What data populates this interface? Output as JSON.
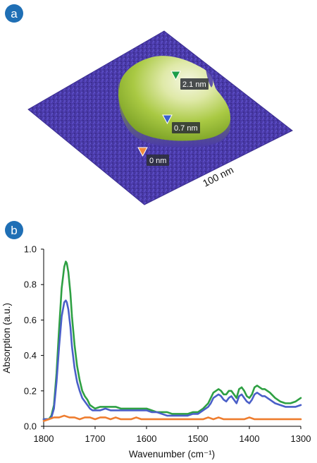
{
  "panels": [
    {
      "letter": "a"
    },
    {
      "letter": "b"
    }
  ],
  "afm_image": {
    "scale_bar_label": "100 nm",
    "colors": {
      "substrate": "#4a3aa8",
      "flake_low": "#8fb82a",
      "flake_high": "#eef2d2"
    },
    "markers": [
      {
        "label": "2.1 nm",
        "color": "#1e9e4a"
      },
      {
        "label": "0.7 nm",
        "color": "#3a5fcd"
      },
      {
        "label": "0 nm",
        "color": "#f08a3c"
      }
    ]
  },
  "chart_data": {
    "type": "line",
    "xlabel": "Wavenumber (cm⁻¹)",
    "ylabel": "Absorption (a.u.)",
    "xlim": [
      1800,
      1300
    ],
    "ylim": [
      0,
      1.0
    ],
    "x_reversed": true,
    "xticks": [
      1800,
      1700,
      1600,
      1500,
      1400,
      1300
    ],
    "yticks": [
      0.0,
      0.2,
      0.4,
      0.6,
      0.8,
      1.0
    ],
    "xtick_labels": [
      "1800",
      "1700",
      "1600",
      "1500",
      "1400",
      "1300"
    ],
    "ytick_labels": [
      "0.0",
      "0.2",
      "0.4",
      "0.6",
      "0.8",
      "1.0"
    ],
    "grid": false,
    "series": [
      {
        "color": "#2ea043",
        "x": [
          1800,
          1790,
          1785,
          1780,
          1775,
          1770,
          1765,
          1760,
          1757,
          1755,
          1752,
          1748,
          1745,
          1740,
          1735,
          1730,
          1725,
          1720,
          1715,
          1710,
          1705,
          1700,
          1690,
          1680,
          1670,
          1660,
          1650,
          1640,
          1630,
          1620,
          1610,
          1600,
          1590,
          1580,
          1570,
          1560,
          1550,
          1540,
          1530,
          1520,
          1510,
          1500,
          1495,
          1490,
          1480,
          1475,
          1470,
          1465,
          1460,
          1455,
          1450,
          1445,
          1440,
          1435,
          1430,
          1425,
          1420,
          1415,
          1410,
          1405,
          1400,
          1395,
          1390,
          1385,
          1380,
          1375,
          1370,
          1365,
          1360,
          1350,
          1340,
          1330,
          1320,
          1310,
          1300
        ],
        "y": [
          0.04,
          0.04,
          0.06,
          0.12,
          0.3,
          0.55,
          0.78,
          0.9,
          0.93,
          0.92,
          0.87,
          0.75,
          0.62,
          0.46,
          0.34,
          0.26,
          0.2,
          0.17,
          0.15,
          0.12,
          0.11,
          0.1,
          0.11,
          0.11,
          0.11,
          0.11,
          0.1,
          0.1,
          0.1,
          0.1,
          0.1,
          0.1,
          0.09,
          0.08,
          0.08,
          0.08,
          0.07,
          0.07,
          0.07,
          0.07,
          0.08,
          0.08,
          0.09,
          0.1,
          0.13,
          0.16,
          0.19,
          0.2,
          0.21,
          0.2,
          0.18,
          0.18,
          0.2,
          0.2,
          0.18,
          0.16,
          0.21,
          0.22,
          0.2,
          0.17,
          0.16,
          0.18,
          0.22,
          0.23,
          0.22,
          0.21,
          0.21,
          0.2,
          0.19,
          0.16,
          0.14,
          0.13,
          0.13,
          0.14,
          0.16
        ]
      },
      {
        "color": "#4a5fc8",
        "x": [
          1800,
          1790,
          1785,
          1780,
          1775,
          1770,
          1765,
          1760,
          1757,
          1755,
          1752,
          1748,
          1745,
          1740,
          1735,
          1730,
          1725,
          1720,
          1715,
          1710,
          1705,
          1700,
          1690,
          1680,
          1670,
          1660,
          1650,
          1640,
          1630,
          1620,
          1610,
          1600,
          1590,
          1580,
          1570,
          1560,
          1550,
          1540,
          1530,
          1520,
          1510,
          1500,
          1495,
          1490,
          1480,
          1475,
          1470,
          1465,
          1460,
          1455,
          1450,
          1445,
          1440,
          1435,
          1430,
          1425,
          1420,
          1415,
          1410,
          1405,
          1400,
          1395,
          1390,
          1385,
          1380,
          1375,
          1370,
          1365,
          1360,
          1350,
          1340,
          1330,
          1320,
          1310,
          1300
        ],
        "y": [
          0.04,
          0.04,
          0.05,
          0.1,
          0.25,
          0.45,
          0.62,
          0.7,
          0.71,
          0.7,
          0.66,
          0.56,
          0.45,
          0.33,
          0.25,
          0.2,
          0.16,
          0.14,
          0.12,
          0.1,
          0.09,
          0.09,
          0.09,
          0.1,
          0.09,
          0.09,
          0.09,
          0.09,
          0.09,
          0.09,
          0.09,
          0.09,
          0.08,
          0.08,
          0.07,
          0.06,
          0.06,
          0.06,
          0.06,
          0.06,
          0.07,
          0.07,
          0.08,
          0.09,
          0.11,
          0.13,
          0.16,
          0.17,
          0.18,
          0.17,
          0.15,
          0.14,
          0.16,
          0.17,
          0.15,
          0.13,
          0.17,
          0.18,
          0.16,
          0.14,
          0.13,
          0.15,
          0.18,
          0.19,
          0.18,
          0.17,
          0.17,
          0.16,
          0.15,
          0.13,
          0.12,
          0.11,
          0.11,
          0.11,
          0.12
        ]
      },
      {
        "color": "#ee7d2f",
        "x": [
          1800,
          1790,
          1780,
          1770,
          1760,
          1750,
          1740,
          1730,
          1720,
          1710,
          1700,
          1690,
          1680,
          1670,
          1660,
          1650,
          1640,
          1630,
          1620,
          1610,
          1600,
          1590,
          1580,
          1570,
          1560,
          1550,
          1540,
          1530,
          1520,
          1510,
          1500,
          1490,
          1480,
          1470,
          1460,
          1450,
          1440,
          1430,
          1420,
          1410,
          1400,
          1390,
          1380,
          1370,
          1360,
          1350,
          1340,
          1330,
          1320,
          1310,
          1300
        ],
        "y": [
          0.03,
          0.04,
          0.05,
          0.05,
          0.06,
          0.05,
          0.05,
          0.04,
          0.05,
          0.05,
          0.04,
          0.05,
          0.05,
          0.04,
          0.05,
          0.04,
          0.04,
          0.04,
          0.05,
          0.04,
          0.04,
          0.04,
          0.04,
          0.04,
          0.04,
          0.04,
          0.04,
          0.04,
          0.04,
          0.04,
          0.04,
          0.04,
          0.05,
          0.04,
          0.05,
          0.04,
          0.04,
          0.04,
          0.04,
          0.04,
          0.05,
          0.04,
          0.04,
          0.04,
          0.04,
          0.04,
          0.04,
          0.04,
          0.04,
          0.04,
          0.04
        ]
      }
    ]
  }
}
